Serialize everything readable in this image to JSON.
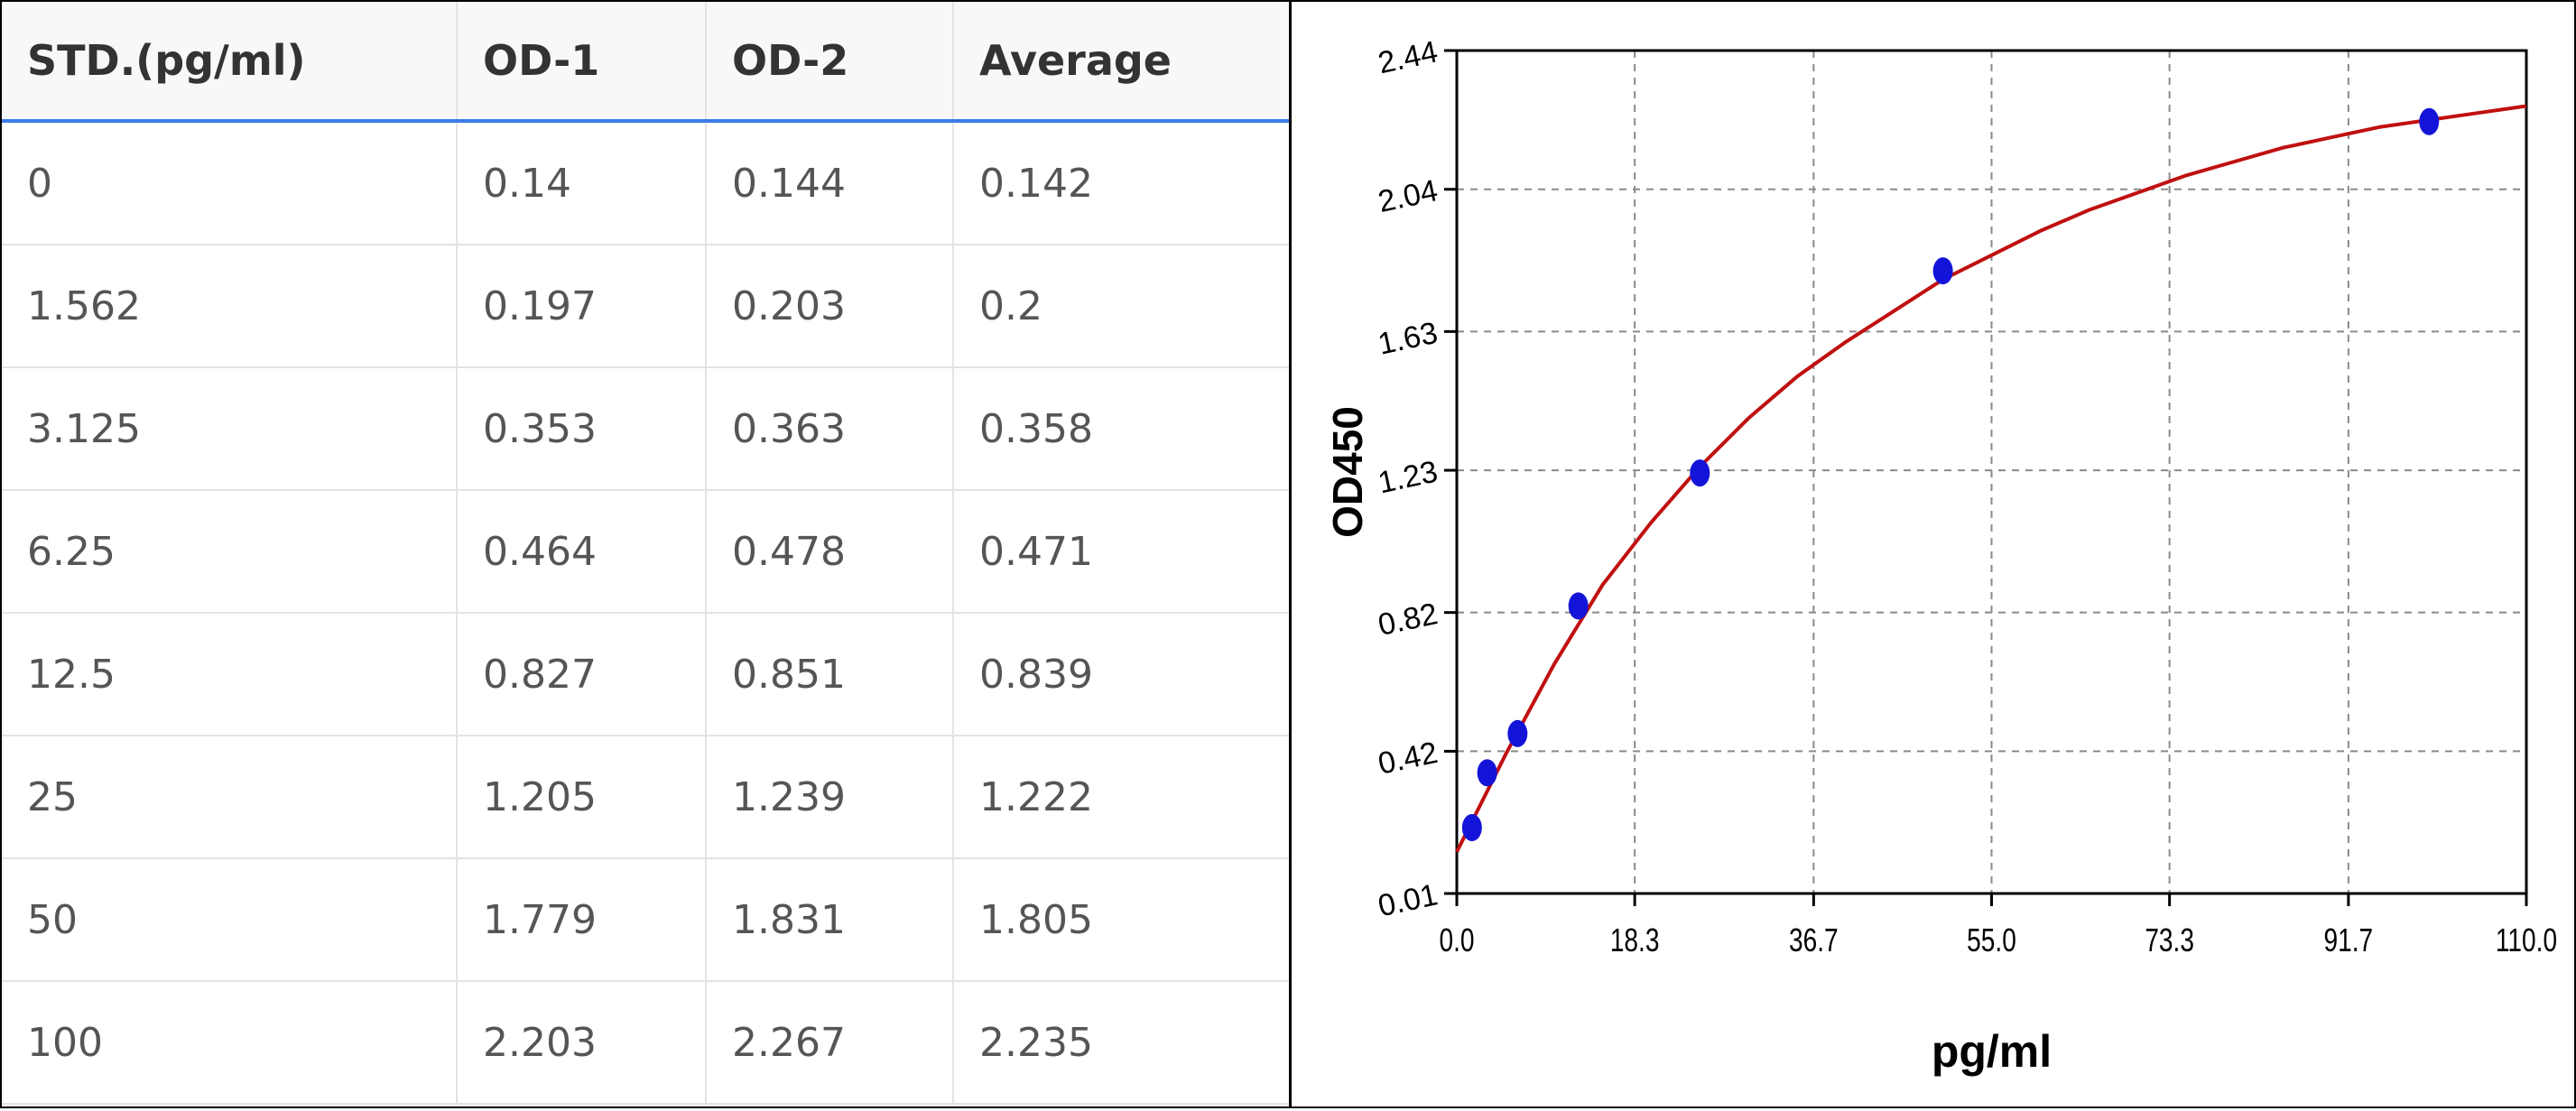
{
  "table": {
    "headers": [
      "STD.(pg/ml)",
      "OD-1",
      "OD-2",
      "Average"
    ],
    "rows": [
      [
        "0",
        "0.14",
        "0.144",
        "0.142"
      ],
      [
        "1.562",
        "0.197",
        "0.203",
        "0.2"
      ],
      [
        "3.125",
        "0.353",
        "0.363",
        "0.358"
      ],
      [
        "6.25",
        "0.464",
        "0.478",
        "0.471"
      ],
      [
        "12.5",
        "0.827",
        "0.851",
        "0.839"
      ],
      [
        "25",
        "1.205",
        "1.239",
        "1.222"
      ],
      [
        "50",
        "1.779",
        "1.831",
        "1.805"
      ],
      [
        "100",
        "2.203",
        "2.267",
        "2.235"
      ]
    ]
  },
  "chart_data": {
    "type": "scatter",
    "title": "",
    "xlabel": "pg/ml",
    "ylabel": "OD450",
    "xlim": [
      0.0,
      110.0
    ],
    "ylim": [
      0.01,
      2.44
    ],
    "xticks": [
      "0.0",
      "18.3",
      "36.7",
      "55.0",
      "73.3",
      "91.7",
      "110.0"
    ],
    "yticks": [
      "0.01",
      "0.42",
      "0.82",
      "1.23",
      "1.63",
      "2.04",
      "2.44"
    ],
    "grid": true,
    "points": {
      "x": [
        1.562,
        3.125,
        6.25,
        12.5,
        25,
        50,
        100
      ],
      "y": [
        0.2,
        0.358,
        0.471,
        0.839,
        1.222,
        1.805,
        2.235
      ]
    },
    "fit_curve": {
      "x": [
        0,
        5,
        10,
        15,
        20,
        25,
        30,
        35,
        40,
        45,
        50,
        55,
        60,
        65,
        70,
        75,
        80,
        85,
        90,
        95,
        100,
        105,
        110
      ],
      "y": [
        0.13,
        0.41,
        0.67,
        0.9,
        1.08,
        1.24,
        1.38,
        1.5,
        1.6,
        1.69,
        1.78,
        1.85,
        1.92,
        1.98,
        2.03,
        2.08,
        2.12,
        2.16,
        2.19,
        2.22,
        2.24,
        2.26,
        2.28
      ]
    },
    "colors": {
      "points": "#1414d8",
      "curve": "#c01010",
      "grid": "#8a8a8a"
    }
  }
}
